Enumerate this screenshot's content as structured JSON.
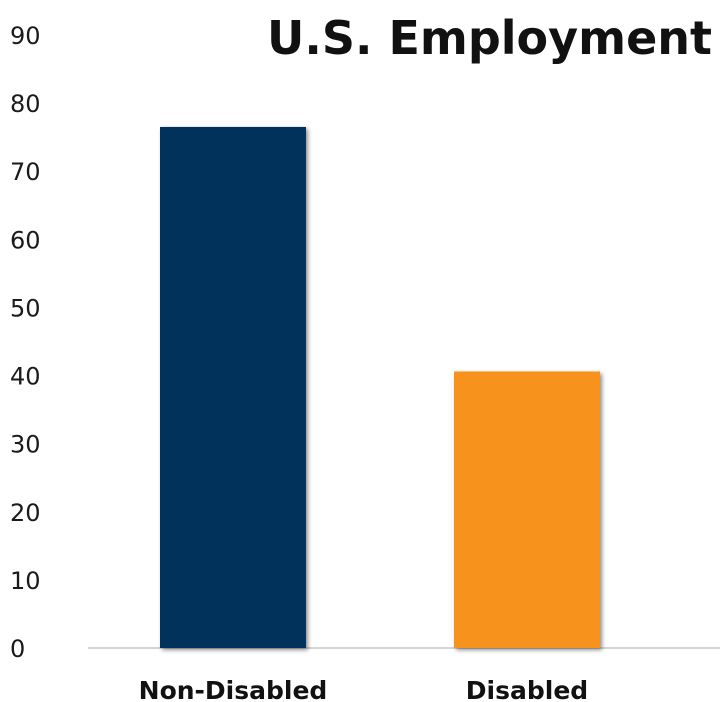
{
  "chart_data": {
    "type": "bar",
    "title": "U.S. Employment",
    "categories": [
      "Non-Disabled",
      "Disabled"
    ],
    "values": [
      76.5,
      40.6
    ],
    "bar_colors": [
      "#02315c",
      "#f7931e"
    ],
    "ylim": [
      0,
      90
    ],
    "yticks": [
      "0",
      "10",
      "20",
      "30",
      "40",
      "50",
      "60",
      "70",
      "80",
      "90"
    ],
    "xlabel": "",
    "ylabel": "",
    "grid": false,
    "legend": "none"
  }
}
